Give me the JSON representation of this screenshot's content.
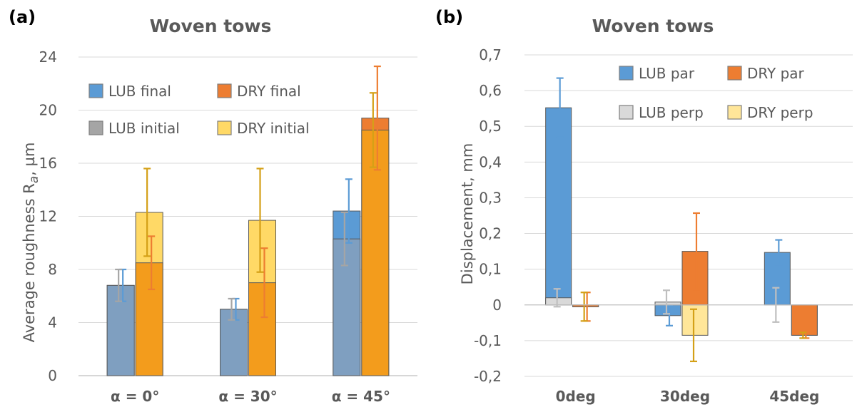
{
  "chart_data": [
    {
      "type": "bar",
      "panel_label": "(a)",
      "title": "Woven tows",
      "ylabel": "Average roughness R",
      "ylabel_sub": "a",
      "ylabel_unit": ", µm",
      "xlabel": "",
      "ylim": [
        0,
        24
      ],
      "yticks": [
        "0",
        "4",
        "8",
        "12",
        "16",
        "20",
        "24"
      ],
      "categories": [
        "α = 0°",
        "α = 30°",
        "α = 45°"
      ],
      "grid": true,
      "legend_position": "top-left",
      "series": [
        {
          "name": "LUB final",
          "values": [
            6.8,
            5.0,
            12.4
          ],
          "errors": [
            1.2,
            0.8,
            2.4
          ],
          "color": "#5b9bd5"
        },
        {
          "name": "DRY final",
          "values": [
            8.5,
            7.0,
            19.4
          ],
          "errors": [
            2.0,
            2.6,
            3.9
          ],
          "color": "#ed7d31"
        },
        {
          "name": "LUB initial",
          "values": [
            6.8,
            5.0,
            10.3
          ],
          "errors": [
            1.2,
            0.8,
            2.0
          ],
          "color": "#a5a5a5"
        },
        {
          "name": "DRY initial",
          "values": [
            12.3,
            11.7,
            18.5
          ],
          "errors": [
            3.3,
            3.9,
            2.8
          ],
          "color": "#ffd966"
        }
      ],
      "colors": {
        "lub_overlap": "#7f9fc0",
        "dry_overlap": "#f39c1c",
        "lub_err": "#5b9bd5",
        "lub_init_err": "#a5a5a5",
        "dry_err": "#ed7d31",
        "dry_init_err": "#d4a017"
      }
    },
    {
      "type": "bar",
      "panel_label": "(b)",
      "title": "Woven tows",
      "ylabel": "Displacement, mm",
      "xlabel": "",
      "ylim": [
        -0.2,
        0.7
      ],
      "yticks": [
        "-0,2",
        "-0,1",
        "0",
        "0,1",
        "0,2",
        "0,3",
        "0,4",
        "0,5",
        "0,6",
        "0,7"
      ],
      "categories": [
        "0deg",
        "30deg",
        "45deg"
      ],
      "grid": true,
      "legend_position": "top-right",
      "series": [
        {
          "name": "LUB par",
          "values": [
            0.552,
            -0.03,
            0.147
          ],
          "errors": [
            0.083,
            0.028,
            0.035
          ],
          "color": "#5b9bd5"
        },
        {
          "name": "DRY par",
          "values": [
            -0.005,
            0.15,
            -0.085
          ],
          "errors": [
            0.04,
            0.107,
            0.008
          ],
          "color": "#ed7d31"
        },
        {
          "name": "LUB perp",
          "values": [
            0.02,
            0.008,
            0.0
          ],
          "errors": [
            0.025,
            0.033,
            0.048
          ],
          "color": "#d9d9d9"
        },
        {
          "name": "DRY perp",
          "values": [
            -0.005,
            -0.085,
            -0.085
          ],
          "errors": [
            0.04,
            0.073,
            0.008
          ],
          "color": "#ffe699"
        }
      ],
      "colors": {
        "lub_par_err": "#5b9bd5",
        "dry_par_err": "#ed7d31",
        "lub_perp_err": "#bfbfbf",
        "dry_perp_err": "#d4a017"
      }
    }
  ]
}
